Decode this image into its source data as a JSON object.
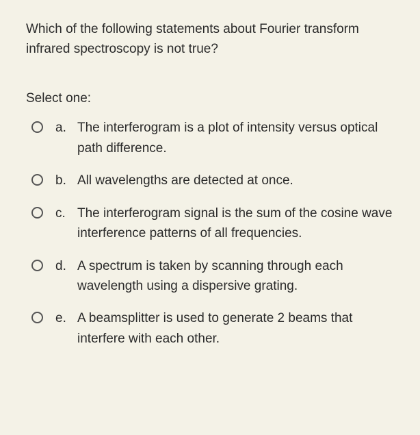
{
  "question": "Which of the following statements about Fourier transform infrared spectroscopy is not true?",
  "prompt": "Select one:",
  "options": [
    {
      "letter": "a.",
      "text": "The interferogram is a plot of intensity versus optical path difference."
    },
    {
      "letter": "b.",
      "text": "All wavelengths are detected at once."
    },
    {
      "letter": "c.",
      "text": "The interferogram signal is the sum of the cosine wave interference patterns of all frequencies."
    },
    {
      "letter": "d.",
      "text": "A spectrum is taken by scanning through each wavelength using a dispersive grating."
    },
    {
      "letter": "e.",
      "text": "A beamsplitter is used to generate 2 beams that interfere with each other."
    }
  ],
  "colors": {
    "background": "#f4f2e7",
    "text": "#2a2a2a",
    "radio_border": "#555555"
  },
  "typography": {
    "font_family": "Arial, Helvetica, sans-serif",
    "font_size_pt": 14,
    "line_height": 1.55
  }
}
